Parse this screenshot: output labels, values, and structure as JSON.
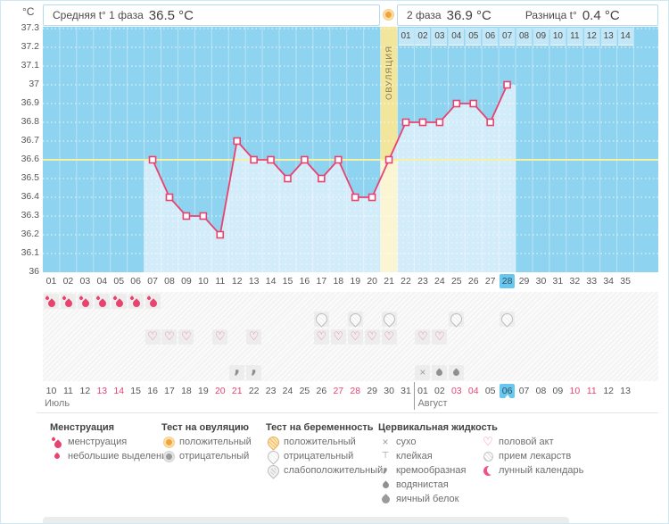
{
  "header": {
    "unit": "°C",
    "avg1_label": "Средняя t° 1 фаза",
    "avg1_value": "36.5 °C",
    "phase2_label": "2 фаза",
    "phase2_value": "36.9 °C",
    "diff_label": "Разница t°",
    "diff_value": "0.4 °C",
    "ovulation_label": "ОВУЛЯЦИЯ",
    "ovulation_test_icon": "sun-positive-ovulation-test"
  },
  "chart_data": {
    "type": "line",
    "title": "Basal body temperature cycle chart",
    "ylabel": "°C",
    "ylim": [
      36.0,
      37.3
    ],
    "yticks": [
      "37.3",
      "37.2",
      "37.1",
      "37",
      "36.9",
      "36.8",
      "36.7",
      "36.6",
      "36.5",
      "36.4",
      "36.3",
      "36.2",
      "36.1",
      "36"
    ],
    "ytick_values": [
      37.3,
      37.2,
      37.1,
      37.0,
      36.9,
      36.8,
      36.7,
      36.6,
      36.5,
      36.4,
      36.3,
      36.2,
      36.1,
      36.0
    ],
    "x_days": [
      "01",
      "02",
      "03",
      "04",
      "05",
      "06",
      "07",
      "08",
      "09",
      "10",
      "11",
      "12",
      "13",
      "14",
      "15",
      "16",
      "17",
      "18",
      "19",
      "20",
      "21",
      "22",
      "23",
      "24",
      "25",
      "26",
      "27",
      "28",
      "29",
      "30",
      "31",
      "32",
      "33",
      "34",
      "35"
    ],
    "points": [
      {
        "day": 7,
        "temp": 36.6
      },
      {
        "day": 8,
        "temp": 36.4
      },
      {
        "day": 9,
        "temp": 36.3
      },
      {
        "day": 10,
        "temp": 36.3
      },
      {
        "day": 11,
        "temp": 36.2
      },
      {
        "day": 12,
        "temp": 36.7
      },
      {
        "day": 13,
        "temp": 36.6
      },
      {
        "day": 14,
        "temp": 36.6
      },
      {
        "day": 15,
        "temp": 36.5
      },
      {
        "day": 16,
        "temp": 36.6
      },
      {
        "day": 17,
        "temp": 36.5
      },
      {
        "day": 18,
        "temp": 36.6
      },
      {
        "day": 19,
        "temp": 36.4
      },
      {
        "day": 20,
        "temp": 36.4
      },
      {
        "day": 21,
        "temp": 36.6
      },
      {
        "day": 22,
        "temp": 36.8
      },
      {
        "day": 23,
        "temp": 36.8
      },
      {
        "day": 24,
        "temp": 36.8
      },
      {
        "day": 25,
        "temp": 36.9
      },
      {
        "day": 26,
        "temp": 36.9
      },
      {
        "day": 27,
        "temp": 36.8
      },
      {
        "day": 28,
        "temp": 37.0
      }
    ],
    "cover_line_temp": 36.6,
    "ovulation_day": 21,
    "current_day": 28,
    "phase2_start_day": 22,
    "phase2_day_labels": [
      "01",
      "02",
      "03",
      "04",
      "05",
      "06",
      "07",
      "08",
      "09",
      "10",
      "11",
      "12",
      "13",
      "14"
    ],
    "grid": "dotted-white",
    "legend_position": "bottom"
  },
  "rows": [
    {
      "name": "menstruation-row",
      "cells": [
        {
          "day": 1,
          "icon": "menses"
        },
        {
          "day": 2,
          "icon": "menses"
        },
        {
          "day": 3,
          "icon": "menses"
        },
        {
          "day": 4,
          "icon": "menses"
        },
        {
          "day": 5,
          "icon": "menses"
        },
        {
          "day": 6,
          "icon": "menses"
        },
        {
          "day": 7,
          "icon": "menses"
        }
      ]
    },
    {
      "name": "pregnancy-test-row",
      "cells": [
        {
          "day": 17,
          "icon": "preg-neg"
        },
        {
          "day": 19,
          "icon": "preg-neg"
        },
        {
          "day": 21,
          "icon": "preg-neg"
        },
        {
          "day": 25,
          "icon": "preg-neg"
        },
        {
          "day": 28,
          "icon": "preg-neg"
        }
      ]
    },
    {
      "name": "intercourse-row",
      "cells": [
        {
          "day": 7,
          "icon": "heart"
        },
        {
          "day": 8,
          "icon": "heart"
        },
        {
          "day": 9,
          "icon": "heart"
        },
        {
          "day": 11,
          "icon": "heart"
        },
        {
          "day": 13,
          "icon": "heart"
        },
        {
          "day": 17,
          "icon": "heart"
        },
        {
          "day": 18,
          "icon": "heart"
        },
        {
          "day": 19,
          "icon": "heart"
        },
        {
          "day": 20,
          "icon": "heart"
        },
        {
          "day": 21,
          "icon": "heart"
        },
        {
          "day": 23,
          "icon": "heart"
        },
        {
          "day": 24,
          "icon": "heart"
        }
      ]
    },
    {
      "name": "extra-row",
      "cells": []
    },
    {
      "name": "cervical-fluid-row",
      "cells": [
        {
          "day": 12,
          "icon": "creamy"
        },
        {
          "day": 13,
          "icon": "creamy"
        },
        {
          "day": 23,
          "icon": "dry"
        },
        {
          "day": 24,
          "icon": "watery"
        },
        {
          "day": 25,
          "icon": "watery"
        }
      ]
    }
  ],
  "calendar": {
    "months": [
      {
        "label": "Июль",
        "days": [
          {
            "d": "10"
          },
          {
            "d": "11"
          },
          {
            "d": "12"
          },
          {
            "d": "13",
            "weekend": true
          },
          {
            "d": "14",
            "weekend": true
          },
          {
            "d": "15"
          },
          {
            "d": "16"
          },
          {
            "d": "17"
          },
          {
            "d": "18"
          },
          {
            "d": "19"
          },
          {
            "d": "20",
            "weekend": true
          },
          {
            "d": "21",
            "weekend": true
          },
          {
            "d": "22"
          },
          {
            "d": "23"
          },
          {
            "d": "24"
          },
          {
            "d": "25"
          },
          {
            "d": "26"
          },
          {
            "d": "27",
            "weekend": true
          },
          {
            "d": "28",
            "weekend": true
          },
          {
            "d": "29"
          },
          {
            "d": "30"
          },
          {
            "d": "31"
          }
        ]
      },
      {
        "label": "Август",
        "days": [
          {
            "d": "01"
          },
          {
            "d": "02"
          },
          {
            "d": "03",
            "weekend": true
          },
          {
            "d": "04",
            "weekend": true
          },
          {
            "d": "05"
          },
          {
            "d": "06",
            "today": true
          },
          {
            "d": "07"
          },
          {
            "d": "08"
          },
          {
            "d": "09"
          },
          {
            "d": "10",
            "weekend": true
          },
          {
            "d": "11",
            "weekend": true
          },
          {
            "d": "12"
          },
          {
            "d": "13"
          }
        ]
      }
    ]
  },
  "legend": {
    "groups": [
      {
        "title": "Менструация",
        "items": [
          {
            "icon": "menses",
            "label": "менструация"
          },
          {
            "icon": "spotting",
            "label": "небольшие выделения"
          }
        ]
      },
      {
        "title": "Тест на овуляцию",
        "items": [
          {
            "icon": "ovu-pos",
            "label": "положительный"
          },
          {
            "icon": "ovu-neg",
            "label": "отрицательный"
          }
        ]
      },
      {
        "title": "Тест на беременность",
        "items": [
          {
            "icon": "preg-pos",
            "label": "положительный"
          },
          {
            "icon": "preg-neg",
            "label": "отрицательный"
          },
          {
            "icon": "preg-weak",
            "label": "слабоположительный"
          }
        ]
      },
      {
        "title": "Цервикальная жидкость",
        "items": [
          {
            "icon": "dry",
            "label": "сухо"
          },
          {
            "icon": "sticky",
            "label": "клейкая"
          },
          {
            "icon": "creamy",
            "label": "кремообразная"
          },
          {
            "icon": "watery",
            "label": "водянистая"
          },
          {
            "icon": "eggwhite",
            "label": "яичный белок"
          }
        ]
      },
      {
        "title": "",
        "items": [
          {
            "icon": "heart",
            "label": "половой акт"
          },
          {
            "icon": "med",
            "label": "прием лекарств"
          },
          {
            "icon": "moon",
            "label": "лунный календарь"
          }
        ]
      }
    ]
  },
  "colors": {
    "accent_pink": "#e8436f",
    "chart_bg": "#8ed3f0",
    "area_fill": "#d3ecfa",
    "ovulation_column": "#f2e59c",
    "ovulation_column_light": "#fbf5d3",
    "cover_line": "#f6f1a3",
    "highlight_day_bg": "#67c7ef",
    "phase2_box_bg": "#c3e7f7",
    "weekend_date": "#e8436f"
  }
}
